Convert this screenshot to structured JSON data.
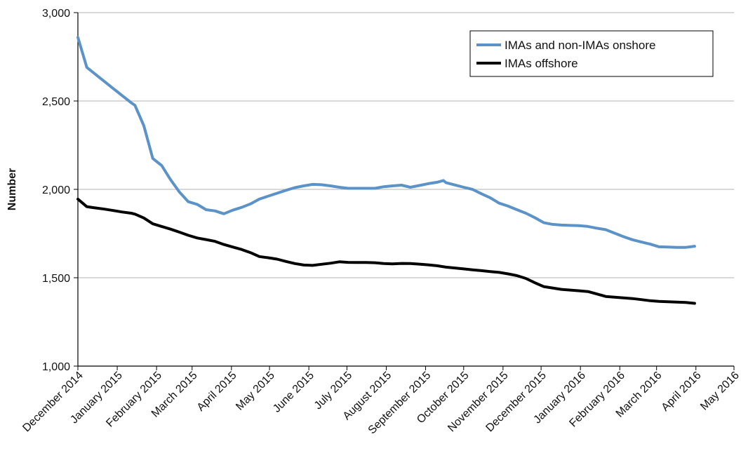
{
  "chart_data": {
    "type": "line",
    "title": "",
    "xlabel": "",
    "ylabel": "Number",
    "ylim": [
      1000,
      3000
    ],
    "yticks": [
      1000,
      1500,
      2000,
      2500,
      3000
    ],
    "ytick_labels": [
      "1,000",
      "1,500",
      "2,000",
      "2,500",
      "3,000"
    ],
    "xlim": [
      "2014-12-01",
      "2016-05-01"
    ],
    "xtick_labels": [
      "December 2014",
      "January 2015",
      "February 2015",
      "March 2015",
      "April 2015",
      "May 2015",
      "June 2015",
      "July 2015",
      "August 2015",
      "September 2015",
      "October 2015",
      "November 2015",
      "December 2015",
      "January 2016",
      "February 2016",
      "March 2016",
      "April 2016",
      "May 2016"
    ],
    "grid": {
      "horizontal": true,
      "vertical": false
    },
    "legend_position": "top-right",
    "series": [
      {
        "name": "IMAs and non-IMAs onshore",
        "color": "#5b93c8",
        "points": [
          [
            "2014-12-01",
            2860
          ],
          [
            "2014-12-08",
            2690
          ],
          [
            "2014-12-15",
            2650
          ],
          [
            "2014-12-22",
            2610
          ],
          [
            "2014-12-29",
            2570
          ],
          [
            "2015-01-05",
            2530
          ],
          [
            "2015-01-12",
            2490
          ],
          [
            "2015-01-15",
            2475
          ],
          [
            "2015-01-22",
            2360
          ],
          [
            "2015-01-29",
            2175
          ],
          [
            "2015-02-05",
            2135
          ],
          [
            "2015-02-12",
            2055
          ],
          [
            "2015-02-19",
            1985
          ],
          [
            "2015-02-26",
            1930
          ],
          [
            "2015-03-05",
            1915
          ],
          [
            "2015-03-12",
            1885
          ],
          [
            "2015-03-19",
            1878
          ],
          [
            "2015-03-26",
            1862
          ],
          [
            "2015-04-02",
            1882
          ],
          [
            "2015-04-09",
            1898
          ],
          [
            "2015-04-16",
            1918
          ],
          [
            "2015-04-23",
            1945
          ],
          [
            "2015-04-30",
            1962
          ],
          [
            "2015-05-07",
            1978
          ],
          [
            "2015-05-14",
            1995
          ],
          [
            "2015-05-21",
            2010
          ],
          [
            "2015-05-28",
            2020
          ],
          [
            "2015-06-04",
            2028
          ],
          [
            "2015-06-11",
            2026
          ],
          [
            "2015-06-18",
            2020
          ],
          [
            "2015-06-25",
            2012
          ],
          [
            "2015-07-02",
            2006
          ],
          [
            "2015-07-09",
            2006
          ],
          [
            "2015-07-16",
            2006
          ],
          [
            "2015-07-23",
            2006
          ],
          [
            "2015-07-30",
            2015
          ],
          [
            "2015-08-06",
            2020
          ],
          [
            "2015-08-13",
            2024
          ],
          [
            "2015-08-20",
            2012
          ],
          [
            "2015-08-27",
            2022
          ],
          [
            "2015-09-03",
            2032
          ],
          [
            "2015-09-10",
            2040
          ],
          [
            "2015-09-15",
            2050
          ],
          [
            "2015-09-17",
            2038
          ],
          [
            "2015-09-24",
            2025
          ],
          [
            "2015-10-01",
            2012
          ],
          [
            "2015-10-08",
            2000
          ],
          [
            "2015-10-15",
            1975
          ],
          [
            "2015-10-22",
            1952
          ],
          [
            "2015-10-29",
            1922
          ],
          [
            "2015-11-05",
            1905
          ],
          [
            "2015-11-12",
            1885
          ],
          [
            "2015-11-19",
            1865
          ],
          [
            "2015-11-26",
            1840
          ],
          [
            "2015-12-03",
            1812
          ],
          [
            "2015-12-10",
            1802
          ],
          [
            "2015-12-17",
            1798
          ],
          [
            "2015-12-24",
            1796
          ],
          [
            "2015-12-31",
            1795
          ],
          [
            "2016-01-07",
            1790
          ],
          [
            "2016-01-14",
            1780
          ],
          [
            "2016-01-21",
            1772
          ],
          [
            "2016-01-28",
            1752
          ],
          [
            "2016-02-04",
            1732
          ],
          [
            "2016-02-11",
            1715
          ],
          [
            "2016-02-18",
            1702
          ],
          [
            "2016-02-25",
            1690
          ],
          [
            "2016-03-03",
            1675
          ],
          [
            "2016-03-10",
            1674
          ],
          [
            "2016-03-17",
            1672
          ],
          [
            "2016-03-24",
            1672
          ],
          [
            "2016-03-31",
            1678
          ]
        ]
      },
      {
        "name": "IMAs offshore",
        "color": "#000000",
        "points": [
          [
            "2014-12-01",
            1945
          ],
          [
            "2014-12-08",
            1902
          ],
          [
            "2014-12-15",
            1895
          ],
          [
            "2014-12-22",
            1888
          ],
          [
            "2014-12-29",
            1880
          ],
          [
            "2015-01-05",
            1872
          ],
          [
            "2015-01-12",
            1865
          ],
          [
            "2015-01-15",
            1860
          ],
          [
            "2015-01-22",
            1838
          ],
          [
            "2015-01-29",
            1805
          ],
          [
            "2015-02-05",
            1790
          ],
          [
            "2015-02-12",
            1775
          ],
          [
            "2015-02-19",
            1758
          ],
          [
            "2015-02-26",
            1740
          ],
          [
            "2015-03-05",
            1725
          ],
          [
            "2015-03-12",
            1716
          ],
          [
            "2015-03-19",
            1706
          ],
          [
            "2015-03-26",
            1688
          ],
          [
            "2015-04-02",
            1674
          ],
          [
            "2015-04-09",
            1660
          ],
          [
            "2015-04-16",
            1642
          ],
          [
            "2015-04-23",
            1620
          ],
          [
            "2015-04-30",
            1613
          ],
          [
            "2015-05-07",
            1605
          ],
          [
            "2015-05-14",
            1592
          ],
          [
            "2015-05-21",
            1580
          ],
          [
            "2015-05-28",
            1572
          ],
          [
            "2015-06-04",
            1570
          ],
          [
            "2015-06-11",
            1576
          ],
          [
            "2015-06-18",
            1582
          ],
          [
            "2015-06-25",
            1590
          ],
          [
            "2015-07-02",
            1587
          ],
          [
            "2015-07-09",
            1586
          ],
          [
            "2015-07-16",
            1586
          ],
          [
            "2015-07-23",
            1585
          ],
          [
            "2015-07-30",
            1580
          ],
          [
            "2015-08-06",
            1578
          ],
          [
            "2015-08-13",
            1581
          ],
          [
            "2015-08-20",
            1580
          ],
          [
            "2015-08-27",
            1577
          ],
          [
            "2015-09-03",
            1573
          ],
          [
            "2015-09-10",
            1568
          ],
          [
            "2015-09-17",
            1560
          ],
          [
            "2015-09-24",
            1555
          ],
          [
            "2015-10-01",
            1550
          ],
          [
            "2015-10-08",
            1545
          ],
          [
            "2015-10-15",
            1540
          ],
          [
            "2015-10-22",
            1535
          ],
          [
            "2015-10-29",
            1530
          ],
          [
            "2015-11-05",
            1522
          ],
          [
            "2015-11-12",
            1512
          ],
          [
            "2015-11-19",
            1496
          ],
          [
            "2015-11-26",
            1472
          ],
          [
            "2015-12-03",
            1450
          ],
          [
            "2015-12-10",
            1442
          ],
          [
            "2015-12-17",
            1434
          ],
          [
            "2015-12-24",
            1430
          ],
          [
            "2015-12-31",
            1426
          ],
          [
            "2016-01-07",
            1422
          ],
          [
            "2016-01-14",
            1408
          ],
          [
            "2016-01-21",
            1394
          ],
          [
            "2016-01-28",
            1390
          ],
          [
            "2016-02-04",
            1386
          ],
          [
            "2016-02-11",
            1382
          ],
          [
            "2016-02-18",
            1376
          ],
          [
            "2016-02-25",
            1370
          ],
          [
            "2016-03-03",
            1366
          ],
          [
            "2016-03-10",
            1364
          ],
          [
            "2016-03-17",
            1362
          ],
          [
            "2016-03-24",
            1360
          ],
          [
            "2016-03-31",
            1355
          ]
        ]
      }
    ]
  }
}
